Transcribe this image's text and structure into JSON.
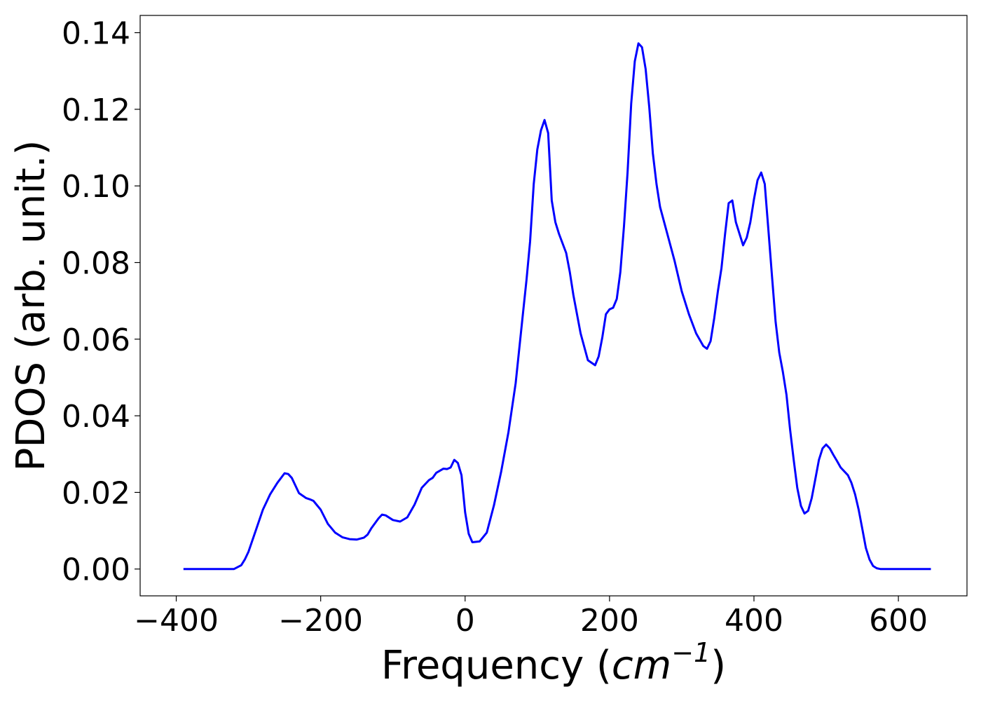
{
  "chart_data": {
    "type": "line",
    "title": "",
    "xlabel": "Frequency (cm⁻¹)",
    "xlabel_parts": {
      "prefix": "Frequency (",
      "unit": "cm",
      "exponent": "−1",
      "suffix": ")"
    },
    "ylabel": "PDOS (arb. unit.)",
    "xlim": [
      -450,
      695
    ],
    "ylim": [
      -0.007,
      0.1445
    ],
    "xticks": [
      -400,
      -200,
      0,
      200,
      400,
      600
    ],
    "xtick_labels": [
      "−400",
      "−200",
      "0",
      "200",
      "400",
      "600"
    ],
    "yticks": [
      0.0,
      0.02,
      0.04,
      0.06,
      0.08,
      0.1,
      0.12,
      0.14
    ],
    "ytick_labels": [
      "0.00",
      "0.02",
      "0.04",
      "0.06",
      "0.08",
      "0.10",
      "0.12",
      "0.14"
    ],
    "grid": false,
    "legend": "none",
    "series": [
      {
        "color": "#0000ff",
        "x": [
          -390,
          -320,
          -310,
          -305,
          -300,
          -290,
          -280,
          -270,
          -260,
          -250,
          -245,
          -240,
          -230,
          -220,
          -215,
          -210,
          -200,
          -190,
          -180,
          -170,
          -160,
          -150,
          -140,
          -135,
          -130,
          -120,
          -115,
          -110,
          -100,
          -90,
          -80,
          -70,
          -60,
          -50,
          -45,
          -40,
          -30,
          -25,
          -20,
          -15,
          -10,
          -5,
          0,
          5,
          10,
          20,
          30,
          40,
          50,
          60,
          70,
          80,
          85,
          90,
          95,
          100,
          105,
          110,
          115,
          120,
          125,
          130,
          140,
          145,
          150,
          160,
          170,
          180,
          185,
          190,
          195,
          200,
          205,
          210,
          215,
          220,
          225,
          230,
          235,
          240,
          245,
          250,
          255,
          260,
          265,
          270,
          280,
          290,
          300,
          310,
          320,
          330,
          335,
          340,
          345,
          350,
          355,
          360,
          365,
          370,
          375,
          385,
          390,
          395,
          400,
          405,
          410,
          415,
          420,
          425,
          430,
          435,
          440,
          445,
          450,
          455,
          460,
          465,
          470,
          475,
          480,
          485,
          490,
          495,
          500,
          505,
          510,
          515,
          520,
          530,
          535,
          540,
          545,
          550,
          555,
          560,
          565,
          570,
          575,
          580,
          600,
          645
        ],
        "y": [
          0.0,
          0.0,
          0.001,
          0.0025,
          0.0045,
          0.01,
          0.0155,
          0.0195,
          0.0225,
          0.025,
          0.0248,
          0.0238,
          0.0198,
          0.0185,
          0.0182,
          0.0178,
          0.0155,
          0.0118,
          0.0095,
          0.0083,
          0.0078,
          0.0077,
          0.0082,
          0.009,
          0.0106,
          0.0132,
          0.0142,
          0.014,
          0.0128,
          0.0124,
          0.0135,
          0.0168,
          0.0212,
          0.0232,
          0.0238,
          0.0251,
          0.0262,
          0.0261,
          0.0265,
          0.0285,
          0.0277,
          0.0245,
          0.0148,
          0.0092,
          0.007,
          0.0072,
          0.0095,
          0.0167,
          0.0255,
          0.0357,
          0.0485,
          0.0665,
          0.0755,
          0.0855,
          0.1005,
          0.1095,
          0.1145,
          0.1172,
          0.1138,
          0.0962,
          0.0905,
          0.0875,
          0.0825,
          0.0775,
          0.0715,
          0.0615,
          0.0545,
          0.0532,
          0.0555,
          0.0605,
          0.0665,
          0.0678,
          0.0682,
          0.0705,
          0.0775,
          0.0895,
          0.1035,
          0.1215,
          0.1325,
          0.1372,
          0.1362,
          0.1305,
          0.1205,
          0.1085,
          0.1005,
          0.0945,
          0.0875,
          0.0805,
          0.0725,
          0.0665,
          0.0615,
          0.0582,
          0.0575,
          0.0595,
          0.0655,
          0.0725,
          0.0785,
          0.0875,
          0.0955,
          0.0962,
          0.0905,
          0.0845,
          0.0865,
          0.0905,
          0.0965,
          0.1015,
          0.1035,
          0.1005,
          0.0885,
          0.0765,
          0.0645,
          0.0565,
          0.0515,
          0.0455,
          0.0365,
          0.0285,
          0.0212,
          0.0165,
          0.0145,
          0.0152,
          0.0185,
          0.0235,
          0.0285,
          0.0315,
          0.0325,
          0.0315,
          0.0298,
          0.0282,
          0.0265,
          0.0245,
          0.0225,
          0.0195,
          0.0155,
          0.0105,
          0.0055,
          0.0025,
          0.0008,
          0.0002,
          0.0,
          0.0,
          0.0,
          0.0
        ]
      }
    ]
  }
}
